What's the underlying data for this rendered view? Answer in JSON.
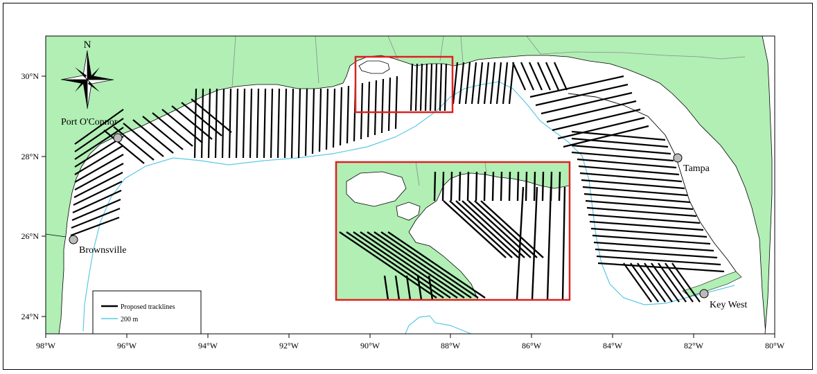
{
  "map": {
    "north_label": "N",
    "lat_ticks": [
      "30°N",
      "28°N",
      "26°N",
      "24°N"
    ],
    "lon_ticks": [
      "98°W",
      "96°W",
      "94°W",
      "92°W",
      "90°W",
      "88°W",
      "86°W",
      "84°W",
      "82°W",
      "80°W"
    ],
    "cities": [
      {
        "name": "Port O'Connor"
      },
      {
        "name": "Brownsville"
      },
      {
        "name": "Tampa"
      },
      {
        "name": "Key West"
      }
    ],
    "legend": {
      "tracklines": "Proposed tracklines",
      "contour": "200 m"
    },
    "colors": {
      "land": "#b1efb5",
      "water": "#ffffff",
      "contour": "#5bc8e6",
      "inset_box": "#e02020",
      "tracklines": "#000000"
    },
    "features": [
      "compass-rose-icon",
      "inset-red-box",
      "inset-enlargement"
    ]
  }
}
